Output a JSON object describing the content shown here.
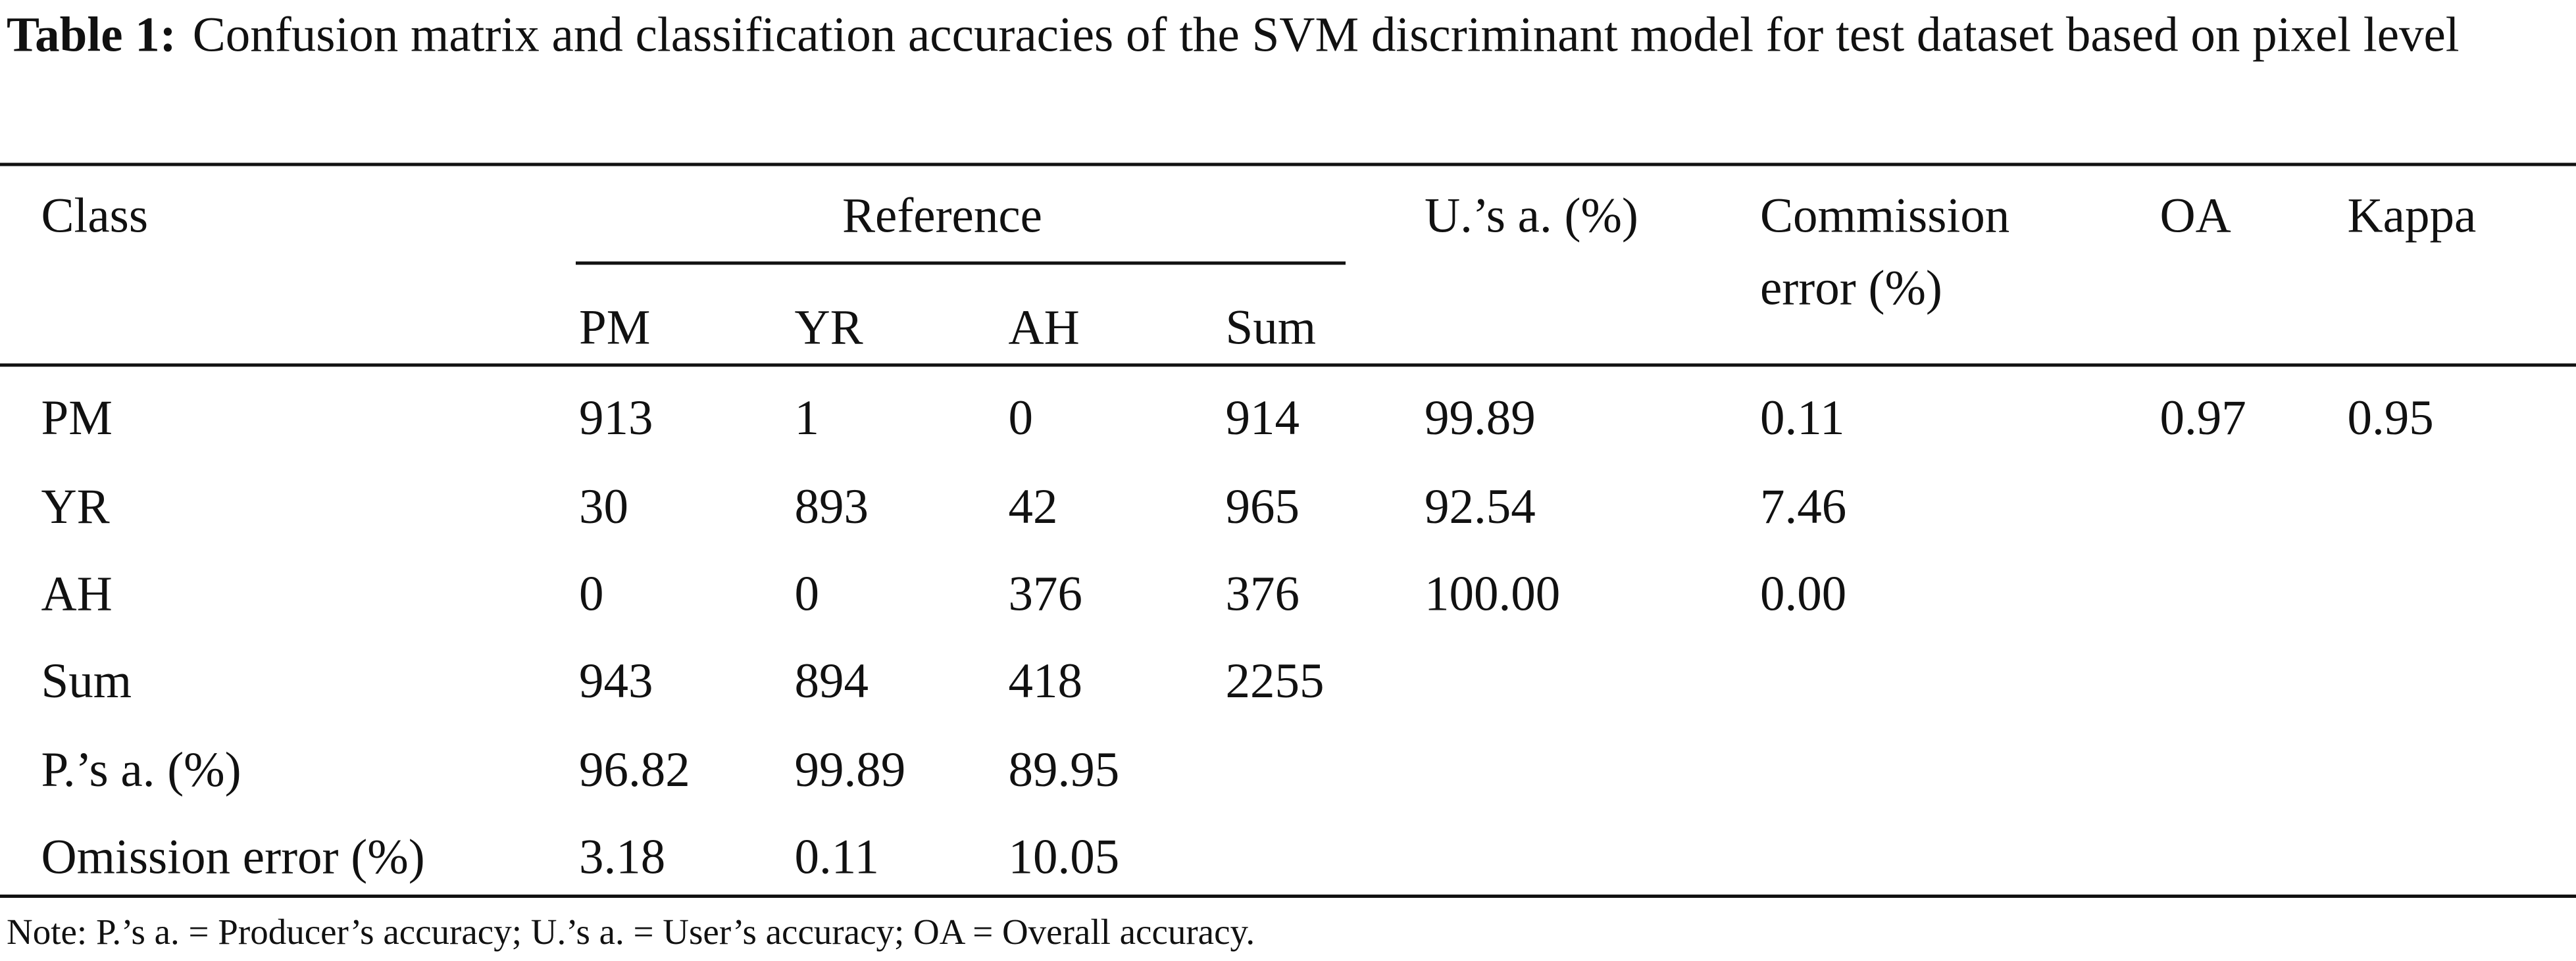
{
  "title": {
    "label": "Table 1:",
    "text": "Confusion matrix and classification accuracies of the SVM discriminant model for test dataset based on pixel level"
  },
  "table": {
    "header": {
      "class": "Class",
      "reference": "Reference",
      "users_accuracy": "U.’s a. (%)",
      "commission_error": "Commission error (%)",
      "oa": "OA",
      "kappa": "Kappa",
      "reference_columns": [
        "PM",
        "YR",
        "AH",
        "Sum"
      ]
    },
    "rows": [
      [
        "PM",
        "913",
        "1",
        "0",
        "914",
        "99.89",
        "0.11",
        "0.97",
        "0.95"
      ],
      [
        "YR",
        "30",
        "893",
        "42",
        "965",
        "92.54",
        "7.46"
      ],
      [
        "AH",
        "0",
        "0",
        "376",
        "376",
        "100.00",
        "0.00"
      ],
      [
        "Sum",
        "943",
        "894",
        "418",
        "2255"
      ],
      [
        "P.’s a. (%)",
        "96.82",
        "99.89",
        "89.95"
      ],
      [
        "Omission error (%)",
        "3.18",
        "0.11",
        "10.05"
      ]
    ]
  },
  "note": "Note: P.’s a. = Producer’s accuracy; U.’s a. = User’s accuracy; OA = Overall accuracy."
}
